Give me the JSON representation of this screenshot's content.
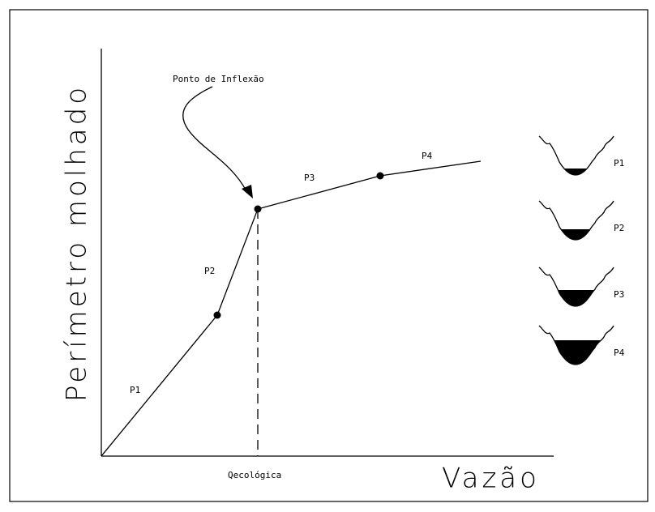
{
  "axes": {
    "y_label": "Perímetro molhado",
    "x_label": "Vazão",
    "x_marker": "Qecológica"
  },
  "annotation": "Ponto de Inflexão",
  "curve": {
    "segments": [
      "P1",
      "P2",
      "P3",
      "P4"
    ]
  },
  "sections": [
    "P1",
    "P2",
    "P3",
    "P4"
  ]
}
